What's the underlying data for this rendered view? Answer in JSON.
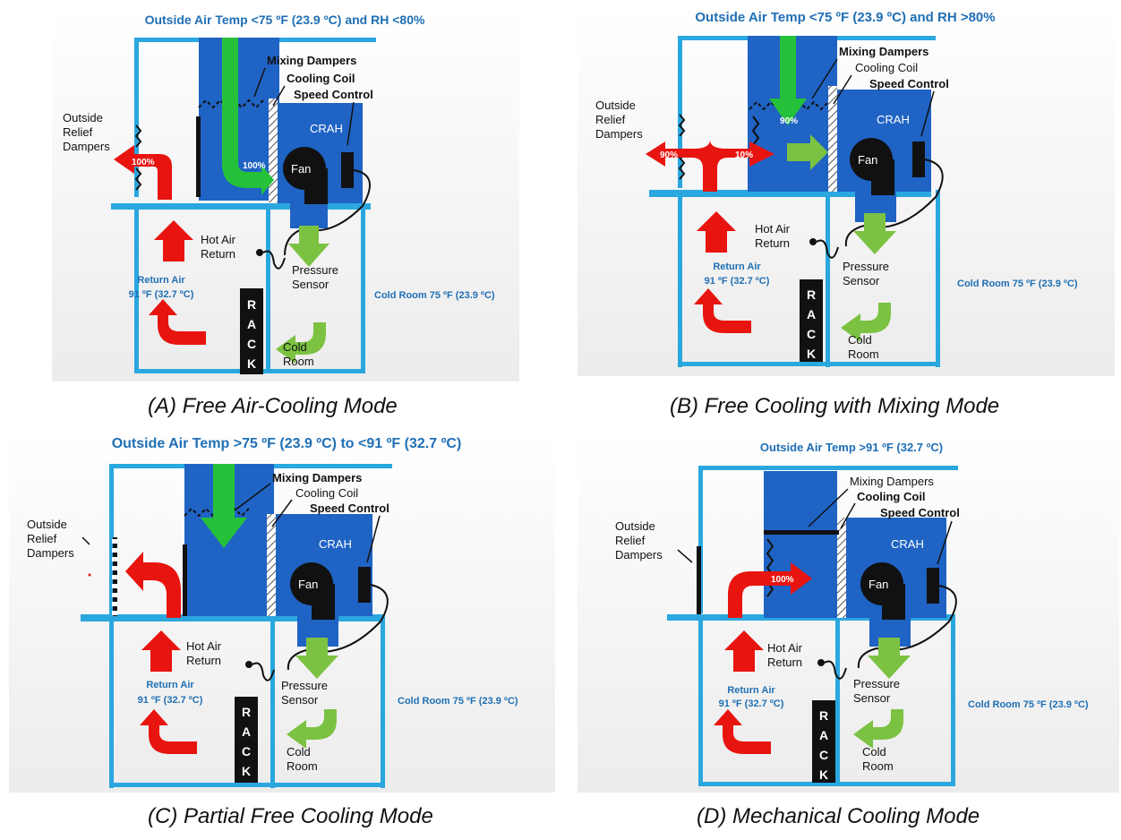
{
  "panels": [
    {
      "caption": "(A) Free Air-Cooling Mode",
      "condition": "Outside Air Temp <75 ºF (23.9 ºC) and RH <80%",
      "labels": {
        "mixing_dampers": "Mixing Dampers",
        "cooling_coil": "Cooling Coil",
        "speed_control": "Speed Control",
        "relief_l1": "Outside",
        "relief_l2": "Relief",
        "relief_l3": "Dampers",
        "crah": "CRAH",
        "fan": "Fan",
        "hot_l1": "Hot Air",
        "hot_l2": "Return",
        "pressure_l1": "Pressure",
        "pressure_l2": "Sensor",
        "return_l1": "Return Air",
        "return_l2": "91 ºF (32.7 ºC)",
        "cold_room_temp": "Cold Room 75 ºF (23.9 ºC)",
        "cold_l1": "Cold",
        "cold_l2": "Room",
        "rack": [
          "R",
          "A",
          "C",
          "K"
        ]
      },
      "percent_relief": "100%",
      "percent_inlet": "100%"
    },
    {
      "caption": "(B) Free Cooling with Mixing Mode",
      "condition": "Outside Air Temp <75 ºF (23.9 ºC) and RH >80%",
      "labels": {
        "mixing_dampers": "Mixing Dampers",
        "cooling_coil": "Cooling Coil",
        "speed_control": "Speed Control",
        "relief_l1": "Outside",
        "relief_l2": "Relief",
        "relief_l3": "Dampers",
        "crah": "CRAH",
        "fan": "Fan",
        "hot_l1": "Hot Air",
        "hot_l2": "Return",
        "pressure_l1": "Pressure",
        "pressure_l2": "Sensor",
        "return_l1": "Return Air",
        "return_l2": "91 ºF (32.7 ºC)",
        "cold_room_temp": "Cold Room 75 ºF (23.9 ºC)",
        "cold_l1": "Cold",
        "cold_l2": "Room",
        "rack": [
          "R",
          "A",
          "C",
          "K"
        ]
      },
      "percent_relief": "90%",
      "percent_mix": "10%",
      "percent_inlet": "90%"
    },
    {
      "caption": "(C) Partial Free Cooling Mode",
      "condition": "Outside Air Temp >75 ºF (23.9 ºC) to <91 ºF (32.7 ºC)",
      "labels": {
        "mixing_dampers": "Mixing Dampers",
        "cooling_coil": "Cooling Coil",
        "speed_control": "Speed Control",
        "relief_l1": "Outside",
        "relief_l2": "Relief",
        "relief_l3": "Dampers",
        "crah": "CRAH",
        "fan": "Fan",
        "hot_l1": "Hot Air",
        "hot_l2": "Return",
        "pressure_l1": "Pressure",
        "pressure_l2": "Sensor",
        "return_l1": "Return Air",
        "return_l2": "91 ºF (32.7 ºC)",
        "cold_room_temp": "Cold Room 75 ºF (23.9 ºC)",
        "cold_l1": "Cold",
        "cold_l2": "Room",
        "rack": [
          "R",
          "A",
          "C",
          "K"
        ]
      }
    },
    {
      "caption": "(D) Mechanical Cooling Mode",
      "condition": "Outside Air Temp >91 ºF (32.7 ºC)",
      "labels": {
        "mixing_dampers": "Mixing Dampers",
        "cooling_coil": "Cooling Coil",
        "speed_control": "Speed Control",
        "relief_l1": "Outside",
        "relief_l2": "Relief",
        "relief_l3": "Dampers",
        "crah": "CRAH",
        "fan": "Fan",
        "hot_l1": "Hot Air",
        "hot_l2": "Return",
        "pressure_l1": "Pressure",
        "pressure_l2": "Sensor",
        "return_l1": "Return Air",
        "return_l2": "91 ºF (32.7 ºC)",
        "cold_room_temp": "Cold Room 75 ºF (23.9 ºC)",
        "cold_l1": "Cold",
        "cold_l2": "Room",
        "rack": [
          "R",
          "A",
          "C",
          "K"
        ]
      },
      "percent_mix": "100%"
    }
  ],
  "colors": {
    "wall": "#2aa7df",
    "crah_blue": "#1f63c4",
    "hot_arrow": "#e8140f",
    "supply_green": "#25c13a",
    "cold_green": "#7cc242",
    "label_blue": "#1f6fb5"
  }
}
